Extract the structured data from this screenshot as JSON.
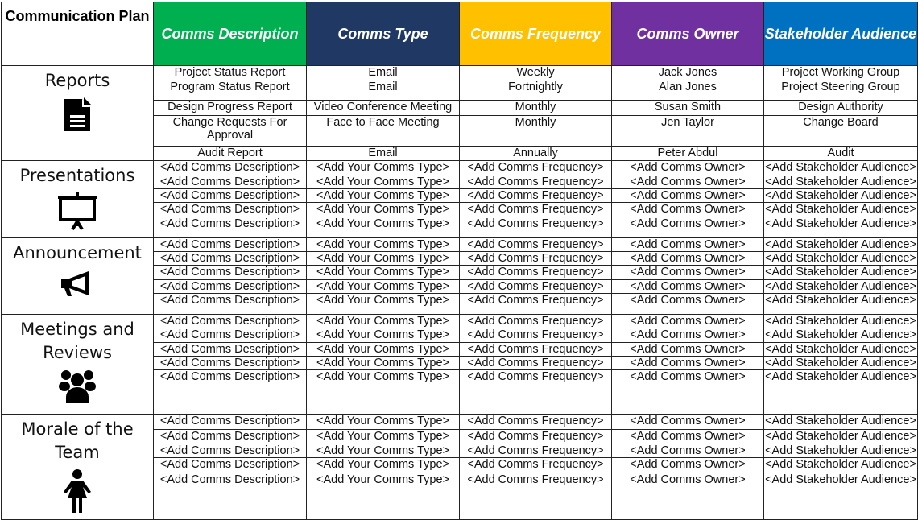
{
  "header": {
    "title": "Communication Plan",
    "columns": [
      {
        "label": "Comms Description",
        "color": "#00b050",
        "text_color": "#ffffff"
      },
      {
        "label": "Comms Type",
        "color": "#1f3864",
        "text_color": "#ffffff"
      },
      {
        "label": "Comms Frequency",
        "color": "#ffc000",
        "text_color": "#ffffff"
      },
      {
        "label": "Comms Owner",
        "color": "#7030a0",
        "text_color": "#ffffff"
      },
      {
        "label": "Stakeholder Audience",
        "color": "#0070c0",
        "text_color": "#ffffff"
      }
    ]
  },
  "sections": [
    {
      "label": "Reports",
      "icon": "document-icon",
      "rows": [
        [
          "Project Status Report",
          "Email",
          "Weekly",
          "Jack Jones",
          "Project Working Group"
        ],
        [
          "Program Status Report",
          "Email",
          "Fortnightly",
          "Alan Jones",
          "Project Steering Group"
        ],
        [
          "Design Progress Report",
          "Video Conference Meeting",
          "Monthly",
          "Susan Smith",
          "Design Authority"
        ],
        [
          "Change Requests For Approval",
          "Face to Face Meeting",
          "Monthly",
          "Jen Taylor",
          "Change Board"
        ],
        [
          "Audit Report",
          "Email",
          "Annually",
          "Peter Abdul",
          "Audit"
        ]
      ]
    },
    {
      "label": "Presentations",
      "icon": "presentation-board-icon",
      "rows": [
        [
          "<Add Comms Description>",
          "<Add Your Comms Type>",
          "<Add Comms Frequency>",
          "<Add Comms Owner>",
          "<Add Stakeholder Audience>"
        ],
        [
          "<Add Comms Description>",
          "<Add Your Comms Type>",
          "<Add Comms Frequency>",
          "<Add Comms Owner>",
          "<Add Stakeholder Audience>"
        ],
        [
          "<Add Comms Description>",
          "<Add Your Comms Type>",
          "<Add Comms Frequency>",
          "<Add Comms Owner>",
          "<Add Stakeholder Audience>"
        ],
        [
          "<Add Comms Description>",
          "<Add Your Comms Type>",
          "<Add Comms Frequency>",
          "<Add Comms Owner>",
          "<Add Stakeholder Audience>"
        ],
        [
          "<Add Comms Description>",
          "<Add Your Comms Type>",
          "<Add Comms Frequency>",
          "<Add Comms Owner>",
          "<Add Stakeholder Audience>"
        ]
      ]
    },
    {
      "label": "Announcement",
      "icon": "megaphone-icon",
      "rows": [
        [
          "<Add Comms Description>",
          "<Add Your Comms Type>",
          "<Add Comms Frequency>",
          "<Add Comms Owner>",
          "<Add Stakeholder Audience>"
        ],
        [
          "<Add Comms Description>",
          "<Add Your Comms Type>",
          "<Add Comms Frequency>",
          "<Add Comms Owner>",
          "<Add Stakeholder Audience>"
        ],
        [
          "<Add Comms Description>",
          "<Add Your Comms Type>",
          "<Add Comms Frequency>",
          "<Add Comms Owner>",
          "<Add Stakeholder Audience>"
        ],
        [
          "<Add Comms Description>",
          "<Add Your Comms Type>",
          "<Add Comms Frequency>",
          "<Add Comms Owner>",
          "<Add Stakeholder Audience>"
        ],
        [
          "<Add Comms Description>",
          "<Add Your Comms Type>",
          "<Add Comms Frequency>",
          "<Add Comms Owner>",
          "<Add Stakeholder Audience>"
        ]
      ]
    },
    {
      "label": "Meetings and Reviews",
      "icon": "group-people-icon",
      "rows": [
        [
          "<Add Comms Description>",
          "<Add Your Comms Type>",
          "<Add Comms Frequency>",
          "<Add Comms Owner>",
          "<Add Stakeholder Audience>"
        ],
        [
          "<Add Comms Description>",
          "<Add Your Comms Type>",
          "<Add Comms Frequency>",
          "<Add Comms Owner>",
          "<Add Stakeholder Audience>"
        ],
        [
          "<Add Comms Description>",
          "<Add Your Comms Type>",
          "<Add Comms Frequency>",
          "<Add Comms Owner>",
          "<Add Stakeholder Audience>"
        ],
        [
          "<Add Comms Description>",
          "<Add Your Comms Type>",
          "<Add Comms Frequency>",
          "<Add Comms Owner>",
          "<Add Stakeholder Audience>"
        ],
        [
          "<Add Comms Description>",
          "<Add Your Comms Type>",
          "<Add Comms Frequency>",
          "<Add Comms Owner>",
          "<Add Stakeholder Audience>"
        ]
      ]
    },
    {
      "label": "Morale of the Team",
      "icon": "woman-person-icon",
      "rows": [
        [
          "<Add Comms Description>",
          "<Add Your Comms Type>",
          "<Add Comms Frequency>",
          "<Add Comms Owner>",
          "<Add Stakeholder Audience>"
        ],
        [
          "<Add Comms Description>",
          "<Add Your Comms Type>",
          "<Add Comms Frequency>",
          "<Add Comms Owner>",
          "<Add Stakeholder Audience>"
        ],
        [
          "<Add Comms Description>",
          "<Add Your Comms Type>",
          "<Add Comms Frequency>",
          "<Add Comms Owner>",
          "<Add Stakeholder Audience>"
        ],
        [
          "<Add Comms Description>",
          "<Add Your Comms Type>",
          "<Add Comms Frequency>",
          "<Add Comms Owner>",
          "<Add Stakeholder Audience>"
        ],
        [
          "<Add Comms Description>",
          "<Add Your Comms Type>",
          "<Add Comms Frequency>",
          "<Add Comms Owner>",
          "<Add Stakeholder Audience>"
        ]
      ]
    }
  ]
}
